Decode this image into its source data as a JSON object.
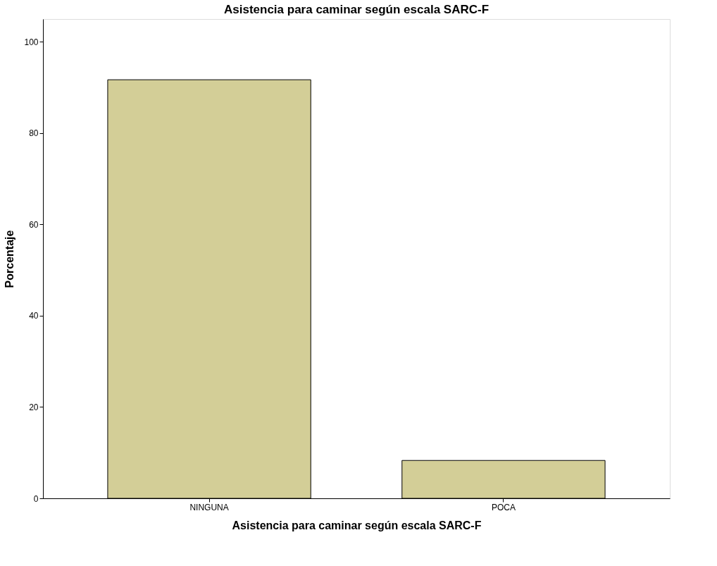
{
  "chart_data": {
    "type": "bar",
    "title": "Asistencia para caminar según escala SARC-F",
    "xlabel": "Asistencia para caminar según escala SARC-F",
    "ylabel": "Porcentaje",
    "categories": [
      "NINGUNA",
      "POCA"
    ],
    "values": [
      91.7,
      8.3
    ],
    "color": "#d3ce97",
    "ylim": [
      0,
      105
    ],
    "yticks": [
      0,
      20,
      40,
      60,
      80,
      100
    ],
    "grid": false
  }
}
